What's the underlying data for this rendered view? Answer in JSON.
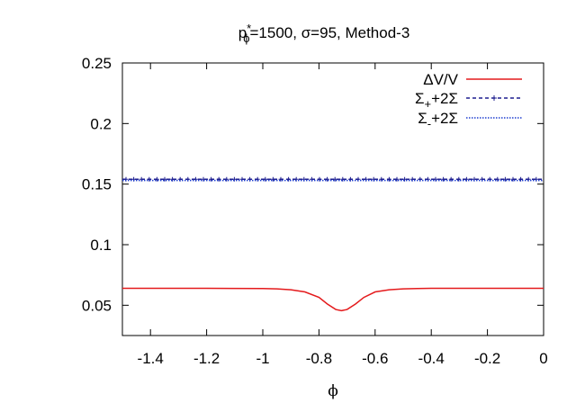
{
  "chart_data": {
    "type": "line",
    "title": "p*ϕ=1500, σ=95, Method-3",
    "title_parts": {
      "pre": "p",
      "sup": "*",
      "sub": "ϕ",
      "post": "=1500, σ=95, Method-3"
    },
    "xlabel": "ϕ",
    "ylabel": "",
    "xlim": [
      -1.5,
      0
    ],
    "ylim": [
      0.025,
      0.25
    ],
    "x_ticks": [
      -1.4,
      -1.2,
      -1,
      -0.8,
      -0.6,
      -0.4,
      -0.2,
      0
    ],
    "x_tick_labels": [
      "-1.4",
      "-1.2",
      "-1",
      "-0.8",
      "-0.6",
      "-0.4",
      "-0.2",
      "0"
    ],
    "y_ticks": [
      0.05,
      0.1,
      0.15,
      0.2,
      0.25
    ],
    "y_tick_labels": [
      "0.05",
      "0.1",
      "0.15",
      "0.2",
      "0.25"
    ],
    "grid": false,
    "legend_position": "top-right",
    "series": [
      {
        "name": "ΔV/V",
        "legend": {
          "main": "ΔV/V",
          "sub": "",
          "tail": ""
        },
        "color": "#e41a1c",
        "style": "solid",
        "x": [
          -1.5,
          -1.2,
          -1.0,
          -0.95,
          -0.9,
          -0.85,
          -0.8,
          -0.77,
          -0.74,
          -0.72,
          -0.7,
          -0.67,
          -0.64,
          -0.6,
          -0.55,
          -0.5,
          -0.45,
          -0.4,
          -0.2,
          0
        ],
        "y": [
          0.064,
          0.064,
          0.0638,
          0.0635,
          0.0628,
          0.061,
          0.0565,
          0.051,
          0.0465,
          0.0455,
          0.0465,
          0.051,
          0.0565,
          0.061,
          0.0628,
          0.0635,
          0.0638,
          0.064,
          0.064,
          0.064
        ]
      },
      {
        "name": "Σ+2Σ",
        "legend": {
          "main": "Σ",
          "sub": "+",
          "tail": "+2Σ"
        },
        "color": "#1f1f8f",
        "style": "dashed-plus",
        "x": [
          -1.5,
          0
        ],
        "y": [
          0.154,
          0.154
        ]
      },
      {
        "name": "Σ+2Σ",
        "legend": {
          "main": "Σ",
          "sub": "-",
          "tail": "+2Σ"
        },
        "color": "#1f3fcf",
        "style": "dotted",
        "x": [
          -1.5,
          0
        ],
        "y": [
          0.153,
          0.153
        ]
      }
    ]
  }
}
